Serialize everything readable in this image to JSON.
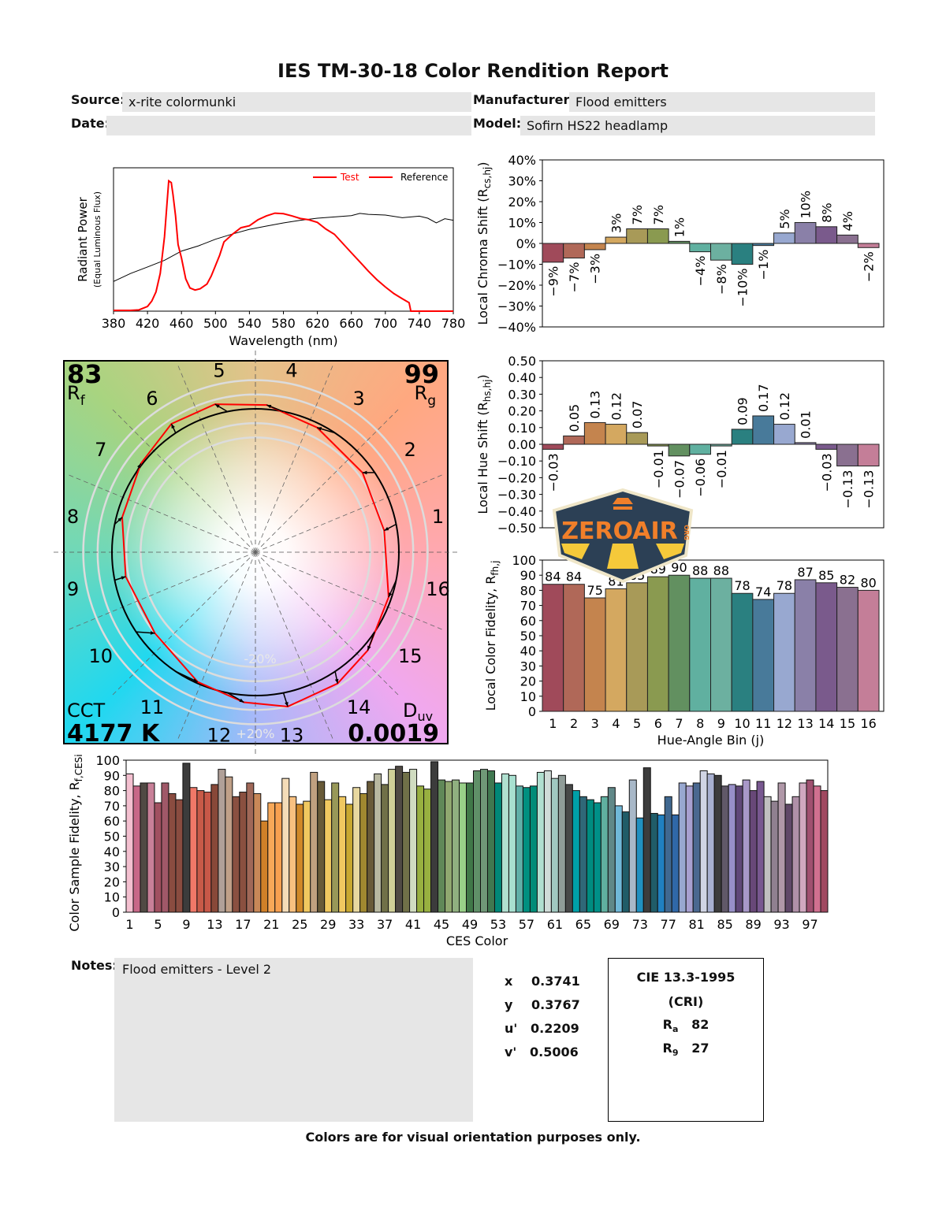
{
  "title": "IES TM-30-18 Color Rendition Report",
  "header": {
    "source_label": "Source:",
    "source": "x-rite colormunki",
    "manufacturer_label": "Manufacturer:",
    "manufacturer": "Flood emitters",
    "date_label": "Date:",
    "date": "",
    "model_label": "Model:",
    "model": "Sofirn HS22 headlamp"
  },
  "vector_graphic": {
    "rf": "83",
    "rf_label": "R",
    "rf_sub": "f",
    "rg": "99",
    "rg_label": "R",
    "rg_sub": "g",
    "cct_label": "CCT",
    "cct": "4177 K",
    "duv_label": "D",
    "duv_sub": "uv",
    "duv": "0.0019",
    "ring_minus": "-20%",
    "ring_plus": "+20%",
    "bin_labels": [
      "1",
      "2",
      "3",
      "4",
      "5",
      "6",
      "7",
      "8",
      "9",
      "10",
      "11",
      "12",
      "13",
      "14",
      "15",
      "16"
    ]
  },
  "watermark": {
    "text": "ZEROAIR",
    "suffix": "ORG"
  },
  "notes": {
    "label": "Notes:",
    "text": "Flood emitters - Level 2"
  },
  "chromaticity": [
    {
      "label": "x",
      "value": "0.3741"
    },
    {
      "label": "y",
      "value": "0.3767"
    },
    {
      "label": "u'",
      "value": "0.2209"
    },
    {
      "label": "v'",
      "value": "0.5006"
    }
  ],
  "cri": {
    "title": "CIE 13.3-1995",
    "subtitle": "(CRI)",
    "ra_label": "R",
    "ra_sub": "a",
    "ra": "82",
    "r9_label": "R",
    "r9_sub": "9",
    "r9": "27"
  },
  "footer": "Colors are for visual orientation purposes only.",
  "bin_colors": [
    "#a04a5a",
    "#b06858",
    "#c4844e",
    "#d4a860",
    "#a89a58",
    "#8a9a50",
    "#629060",
    "#60b0a0",
    "#6cb0a0",
    "#2a8080",
    "#487a9a",
    "#98a8d0",
    "#8a80a8",
    "#7a5a8c",
    "#8a7090",
    "#c47e98"
  ],
  "colors": {
    "test": "#ff0000",
    "reference": "#000000"
  },
  "chart_data": [
    {
      "type": "line",
      "xlabel": "Wavelength (nm)",
      "ylabel": "Radiant Power",
      "ylabel2": "(Equal Luminous Flux)",
      "xlim": [
        380,
        780
      ],
      "ylim": [
        0,
        1.1
      ],
      "xticks": [
        380,
        420,
        460,
        500,
        540,
        580,
        620,
        660,
        700,
        740,
        780
      ],
      "legend": "top-right",
      "series": [
        {
          "name": "Test",
          "color": "#ff0000",
          "x": [
            380,
            400,
            410,
            420,
            425,
            430,
            435,
            440,
            443,
            445,
            448,
            450,
            453,
            456,
            460,
            465,
            470,
            476,
            482,
            490,
            495,
            500,
            505,
            510,
            520,
            530,
            540,
            550,
            560,
            570,
            580,
            590,
            600,
            610,
            620,
            630,
            640,
            650,
            660,
            670,
            680,
            690,
            700,
            710,
            720,
            728,
            730,
            780
          ],
          "y": [
            0.006,
            0.006,
            0.01,
            0.036,
            0.077,
            0.148,
            0.29,
            0.57,
            0.83,
            1.0,
            0.986,
            0.895,
            0.733,
            0.511,
            0.408,
            0.248,
            0.178,
            0.162,
            0.172,
            0.208,
            0.269,
            0.349,
            0.43,
            0.531,
            0.59,
            0.64,
            0.655,
            0.701,
            0.731,
            0.752,
            0.748,
            0.731,
            0.711,
            0.701,
            0.681,
            0.63,
            0.59,
            0.519,
            0.448,
            0.378,
            0.307,
            0.242,
            0.186,
            0.135,
            0.095,
            0.065,
            0,
            0
          ]
        },
        {
          "name": "Reference",
          "color": "#000000",
          "x": [
            380,
            400,
            420,
            440,
            460,
            480,
            500,
            520,
            540,
            560,
            580,
            600,
            620,
            640,
            660,
            670,
            680,
            700,
            720,
            740,
            750,
            760,
            770,
            780
          ],
          "y": [
            0.228,
            0.289,
            0.339,
            0.39,
            0.461,
            0.501,
            0.552,
            0.592,
            0.628,
            0.653,
            0.677,
            0.697,
            0.713,
            0.723,
            0.733,
            0.75,
            0.743,
            0.737,
            0.717,
            0.729,
            0.713,
            0.677,
            0.709,
            0.697
          ]
        }
      ]
    },
    {
      "type": "bar",
      "ylabel": "Local Chroma Shift (R",
      "ylabel_sub": "cs,hj",
      "ylabel_end": ")",
      "ylim": [
        -40,
        40
      ],
      "yticks": [
        -40,
        -30,
        -20,
        -10,
        0,
        10,
        20,
        30,
        40
      ],
      "unit": "%",
      "categories": [
        1,
        2,
        3,
        4,
        5,
        6,
        7,
        8,
        9,
        10,
        11,
        12,
        13,
        14,
        15,
        16
      ],
      "values": [
        -9,
        -7,
        -3,
        3,
        7,
        7,
        1,
        -4,
        -8,
        -10,
        -1,
        5,
        10,
        8,
        4,
        -2
      ]
    },
    {
      "type": "bar",
      "ylabel": "Local Hue Shift (R",
      "ylabel_sub": "hs,hj",
      "ylabel_end": ")",
      "ylim": [
        -0.5,
        0.5
      ],
      "yticks": [
        -0.5,
        -0.4,
        -0.3,
        -0.2,
        -0.1,
        0,
        0.1,
        0.2,
        0.3,
        0.4,
        0.5
      ],
      "categories": [
        1,
        2,
        3,
        4,
        5,
        6,
        7,
        8,
        9,
        10,
        11,
        12,
        13,
        14,
        15,
        16
      ],
      "values": [
        -0.03,
        0.05,
        0.13,
        0.12,
        0.07,
        -0.01,
        -0.07,
        -0.06,
        -0.01,
        0.09,
        0.17,
        0.12,
        0.01,
        -0.03,
        -0.13,
        -0.13
      ]
    },
    {
      "type": "bar",
      "ylabel": "Local Color Fidelity, R",
      "ylabel_sub": "fh,j",
      "ylabel_end": "",
      "xlabel": "Hue-Angle Bin (j)",
      "ylim": [
        0,
        100
      ],
      "yticks": [
        0,
        10,
        20,
        30,
        40,
        50,
        60,
        70,
        80,
        90,
        100
      ],
      "categories": [
        1,
        2,
        3,
        4,
        5,
        6,
        7,
        8,
        9,
        10,
        11,
        12,
        13,
        14,
        15,
        16
      ],
      "values": [
        84,
        84,
        75,
        81,
        85,
        89,
        90,
        88,
        88,
        78,
        74,
        78,
        87,
        85,
        82,
        80
      ]
    },
    {
      "type": "bar",
      "ylabel": "Color Sample Fidelity, R",
      "ylabel_sub": "f,CESi",
      "ylabel_end": "",
      "xlabel": "CES Color",
      "ylim": [
        0,
        100
      ],
      "yticks": [
        0,
        10,
        20,
        30,
        40,
        50,
        60,
        70,
        80,
        90,
        100
      ],
      "xticks": [
        1,
        5,
        9,
        13,
        17,
        21,
        25,
        29,
        33,
        37,
        41,
        45,
        49,
        53,
        57,
        61,
        65,
        69,
        73,
        77,
        81,
        85,
        89,
        93,
        97
      ],
      "values": [
        91,
        83,
        85,
        85,
        72,
        85,
        78,
        74,
        98,
        82,
        80,
        79,
        84,
        94,
        89,
        76,
        79,
        85,
        78,
        60,
        72,
        72,
        88,
        76,
        71,
        73,
        92,
        86,
        74,
        85,
        76,
        71,
        82,
        78,
        86,
        91,
        84,
        94,
        96,
        92,
        94,
        83,
        81,
        99,
        87,
        86,
        87,
        85,
        85,
        93,
        94,
        93,
        85,
        91,
        90,
        83,
        82,
        83,
        92,
        93,
        88,
        90,
        84,
        80,
        76,
        74,
        72,
        76,
        82,
        70,
        66,
        87,
        62,
        95,
        65,
        64,
        76,
        64,
        85,
        83,
        85,
        93,
        91,
        90,
        83,
        84,
        83,
        87,
        80,
        86,
        76,
        73,
        85,
        71,
        76,
        85,
        87,
        83,
        80
      ],
      "colors": [
        "#f4c0d0",
        "#c86888",
        "#504a44",
        "#c88098",
        "#a05060",
        "#a05868",
        "#8a4c40",
        "#8a4c40",
        "#3c3c3c",
        "#f07868",
        "#c85a48",
        "#c85848",
        "#884838",
        "#b0a098",
        "#c0a088",
        "#8a5040",
        "#8a5040",
        "#a06858",
        "#c88858",
        "#d08028",
        "#f8a858",
        "#f8a050",
        "#f4dcb8",
        "#f8c080",
        "#d08828",
        "#f0c860",
        "#c0a080",
        "#685a38",
        "#f0c860",
        "#989858",
        "#f0c860",
        "#c8a830",
        "#e8d8a0",
        "#a08830",
        "#685a38",
        "#b8b8a0",
        "#707048",
        "#d0d098",
        "#504a44",
        "#707048",
        "#d0dcc0",
        "#98b040",
        "#98b040",
        "#3c3c3c",
        "#608858",
        "#90a870",
        "#90b080",
        "#98d088",
        "#407848",
        "#609068",
        "#709878",
        "#407850",
        "#008878",
        "#b0e0d0",
        "#a8e0d0",
        "#60b0a8",
        "#009080",
        "#008c78",
        "#b0e0d0",
        "#d0dcd8",
        "#a0c8c0",
        "#909c98",
        "#484848",
        "#00a0a8",
        "#306878",
        "#008c80",
        "#009088",
        "#60b0a0",
        "#608888",
        "#70b8d8",
        "#205c68",
        "#a8b8c8",
        "#2090c0",
        "#3c3c3c",
        "#205c68",
        "#2080c0",
        "#406890",
        "#3068a8",
        "#98a8d0",
        "#a8a0d0",
        "#4a6890",
        "#d0d4e4",
        "#a8b0d0",
        "#3c3c3c",
        "#605868",
        "#9890c8",
        "#604878",
        "#a898c8",
        "#684878",
        "#785890",
        "#c0c0c0",
        "#908090",
        "#b098a8",
        "#604868",
        "#b090a8",
        "#d0a8c0",
        "#a05070",
        "#d07090",
        "#a04860"
      ]
    }
  ]
}
